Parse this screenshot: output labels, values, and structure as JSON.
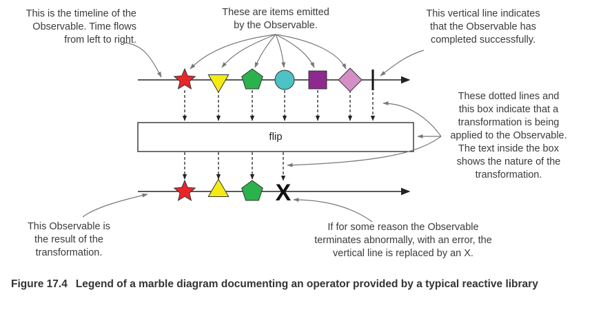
{
  "notes": {
    "timeline": [
      "This is the timeline of the",
      "Observable. Time flows",
      "from left to right."
    ],
    "items": [
      "These are items emitted",
      "by the Observable."
    ],
    "completed": [
      "This vertical line indicates",
      "that the Observable has",
      "completed successfully."
    ],
    "transformation": [
      "These dotted lines and",
      "this box indicate that a",
      "transformation is being",
      "applied to the Observable.",
      "The text inside the box",
      "shows the nature of the",
      "transformation."
    ],
    "result": [
      "This Observable is",
      "the result of the",
      "transformation."
    ],
    "error": [
      "If for some reason the Observable",
      "terminates abnormally, with an error, the",
      "vertical line is replaced by an X."
    ]
  },
  "operator_label": "flip",
  "error_symbol": "X",
  "input_items": [
    {
      "shape": "star",
      "color": "#e8262a"
    },
    {
      "shape": "triangle-down",
      "color": "#f5eb14"
    },
    {
      "shape": "pentagon",
      "color": "#2bb24c"
    },
    {
      "shape": "circle",
      "color": "#4cc2c4"
    },
    {
      "shape": "square",
      "color": "#8e2a8f"
    },
    {
      "shape": "diamond",
      "color": "#d58fc6"
    }
  ],
  "output_items": [
    {
      "shape": "star",
      "color": "#e8262a"
    },
    {
      "shape": "triangle-up",
      "color": "#f5eb14"
    },
    {
      "shape": "pentagon",
      "color": "#2bb24c"
    }
  ],
  "caption": {
    "figure": "Figure 17.4",
    "text": "Legend of a marble diagram documenting an operator provided by a typical reactive library"
  }
}
